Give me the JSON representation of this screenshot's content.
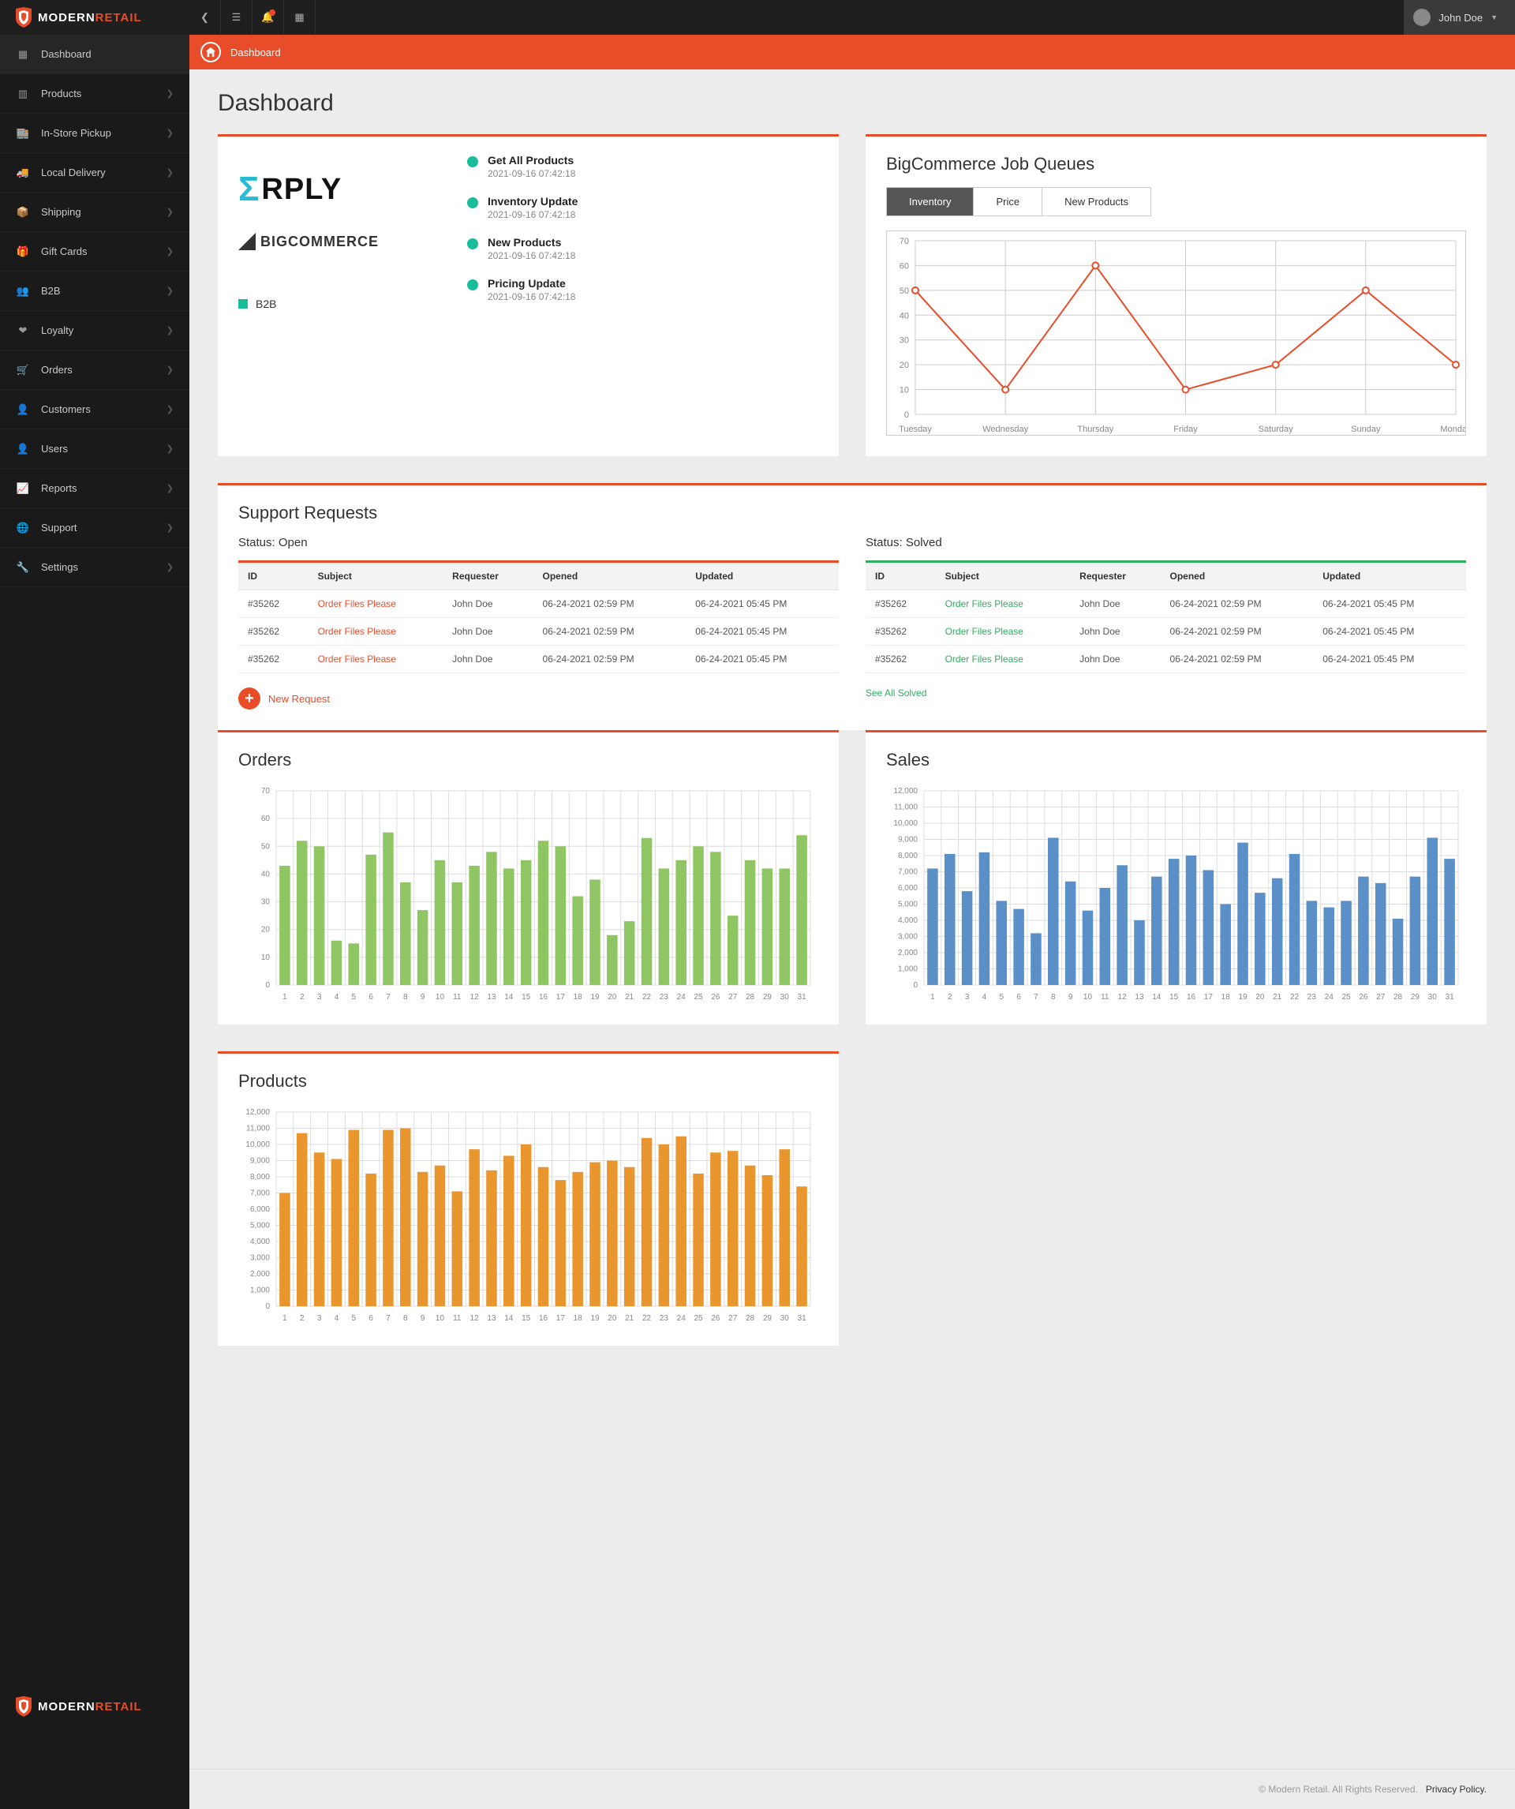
{
  "brand": {
    "name_a": "MODERN",
    "name_b": "RETAIL"
  },
  "user": {
    "name": "John Doe"
  },
  "breadcrumb": {
    "title": "Dashboard"
  },
  "page": {
    "title": "Dashboard"
  },
  "sidebar": {
    "items": [
      {
        "label": "Dashboard",
        "expandable": false,
        "active": true,
        "icon": "dashboard"
      },
      {
        "label": "Products",
        "expandable": true,
        "icon": "barcode"
      },
      {
        "label": "In-Store Pickup",
        "expandable": true,
        "icon": "store"
      },
      {
        "label": "Local Delivery",
        "expandable": true,
        "icon": "truck"
      },
      {
        "label": "Shipping",
        "expandable": true,
        "icon": "box"
      },
      {
        "label": "Gift Cards",
        "expandable": true,
        "icon": "gift"
      },
      {
        "label": "B2B",
        "expandable": true,
        "icon": "group"
      },
      {
        "label": "Loyalty",
        "expandable": true,
        "icon": "loyalty"
      },
      {
        "label": "Orders",
        "expandable": true,
        "icon": "cart"
      },
      {
        "label": "Customers",
        "expandable": true,
        "icon": "users"
      },
      {
        "label": "Users",
        "expandable": true,
        "icon": "user"
      },
      {
        "label": "Reports",
        "expandable": true,
        "icon": "chart"
      },
      {
        "label": "Support",
        "expandable": true,
        "icon": "support"
      },
      {
        "label": "Settings",
        "expandable": true,
        "icon": "wrench"
      }
    ]
  },
  "sync": {
    "logos": {
      "erply": "ΣRPLY",
      "bigcommerce": "BIGCOMMERCE"
    },
    "events": [
      {
        "title": "Get All Products",
        "date": "2021-09-16 07:42:18"
      },
      {
        "title": "Inventory Update",
        "date": "2021-09-16 07:42:18"
      },
      {
        "title": "New Products",
        "date": "2021-09-16 07:42:18"
      },
      {
        "title": "Pricing Update",
        "date": "2021-09-16 07:42:18"
      }
    ],
    "b2b_label": "B2B",
    "dot_color": "#1abc9c"
  },
  "queues": {
    "title": "BigCommerce Job Queues",
    "tabs": [
      "Inventory",
      "Price",
      "New Products"
    ],
    "active_tab": 0,
    "chart": {
      "type": "line",
      "categories": [
        "Tuesday",
        "Wednesday",
        "Thursday",
        "Friday",
        "Saturday",
        "Sunday",
        "Monday"
      ],
      "values": [
        50,
        10,
        60,
        10,
        20,
        50,
        20
      ],
      "ylim": [
        0,
        70
      ],
      "ytick_step": 10,
      "line_color": "#e84c29",
      "line_width": 2,
      "marker_color": "#e84c29",
      "marker_radius": 4,
      "grid_color": "#cccccc",
      "background_color": "#ffffff",
      "axis_font_size": 11,
      "axis_font_color": "#888888"
    }
  },
  "support": {
    "title": "Support Requests",
    "open": {
      "status_label": "Status: Open",
      "columns": [
        "ID",
        "Subject",
        "Requester",
        "Opened",
        "Updated"
      ],
      "rows": [
        [
          "#35262",
          "Order Files Please",
          "John Doe",
          "06-24-2021  02:59 PM",
          "06-24-2021  05:45 PM"
        ],
        [
          "#35262",
          "Order Files Please",
          "John Doe",
          "06-24-2021  02:59 PM",
          "06-24-2021  05:45 PM"
        ],
        [
          "#35262",
          "Order Files Please",
          "John Doe",
          "06-24-2021  02:59 PM",
          "06-24-2021  05:45 PM"
        ]
      ],
      "accent": "#e84c29",
      "new_request_label": "New Request"
    },
    "solved": {
      "status_label": "Status: Solved",
      "columns": [
        "ID",
        "Subject",
        "Requester",
        "Opened",
        "Updated"
      ],
      "rows": [
        [
          "#35262",
          "Order Files Please",
          "John Doe",
          "06-24-2021  02:59 PM",
          "06-24-2021  05:45 PM"
        ],
        [
          "#35262",
          "Order Files Please",
          "John Doe",
          "06-24-2021  02:59 PM",
          "06-24-2021  05:45 PM"
        ],
        [
          "#35262",
          "Order Files Please",
          "John Doe",
          "06-24-2021  02:59 PM",
          "06-24-2021  05:45 PM"
        ]
      ],
      "accent": "#2fae5f",
      "see_all_label": "See All Solved"
    }
  },
  "orders_chart": {
    "title": "Orders",
    "type": "bar",
    "categories": [
      1,
      2,
      3,
      4,
      5,
      6,
      7,
      8,
      9,
      10,
      11,
      12,
      13,
      14,
      15,
      16,
      17,
      18,
      19,
      20,
      21,
      22,
      23,
      24,
      25,
      26,
      27,
      28,
      29,
      30,
      31
    ],
    "values": [
      43,
      52,
      50,
      16,
      15,
      47,
      55,
      37,
      27,
      45,
      37,
      43,
      48,
      42,
      45,
      52,
      50,
      32,
      38,
      18,
      23,
      53,
      42,
      45,
      50,
      48,
      25,
      45,
      42,
      42,
      54
    ],
    "ylim": [
      0,
      70
    ],
    "ytick_step": 10,
    "bar_color": "#8fc663",
    "grid_color": "#dddddd",
    "background_color": "#ffffff",
    "axis_font_size": 10,
    "axis_font_color": "#888888",
    "bar_width": 0.62
  },
  "sales_chart": {
    "title": "Sales",
    "type": "bar",
    "categories": [
      1,
      2,
      3,
      4,
      5,
      6,
      7,
      8,
      9,
      10,
      11,
      12,
      13,
      14,
      15,
      16,
      17,
      18,
      19,
      20,
      21,
      22,
      23,
      24,
      25,
      26,
      27,
      28,
      29,
      30,
      31
    ],
    "values": [
      7200,
      8100,
      5800,
      8200,
      5200,
      4700,
      3200,
      9100,
      6400,
      4600,
      6000,
      7400,
      4000,
      6700,
      7800,
      8000,
      7100,
      5000,
      8800,
      5700,
      6600,
      8100,
      5200,
      4800,
      5200,
      6700,
      6300,
      4100,
      6700,
      9100,
      7800
    ],
    "ylim": [
      0,
      12000
    ],
    "ytick_step": 1000,
    "bar_color": "#5b8fc7",
    "grid_color": "#dddddd",
    "background_color": "#ffffff",
    "axis_font_size": 10,
    "axis_font_color": "#888888",
    "bar_width": 0.62
  },
  "products_chart": {
    "title": "Products",
    "type": "bar",
    "categories": [
      1,
      2,
      3,
      4,
      5,
      6,
      7,
      8,
      9,
      10,
      11,
      12,
      13,
      14,
      15,
      16,
      17,
      18,
      19,
      20,
      21,
      22,
      23,
      24,
      25,
      26,
      27,
      28,
      29,
      30,
      31
    ],
    "values": [
      7000,
      10700,
      9500,
      9100,
      10900,
      8200,
      10900,
      11000,
      8300,
      8700,
      7100,
      9700,
      8400,
      9300,
      10000,
      8600,
      7800,
      8300,
      8900,
      9000,
      8600,
      10400,
      10000,
      10500,
      8200,
      9500,
      9600,
      8700,
      8100,
      9700,
      7400
    ],
    "ylim": [
      0,
      12000
    ],
    "ytick_step": 1000,
    "bar_color": "#e9962e",
    "grid_color": "#dddddd",
    "background_color": "#ffffff",
    "axis_font_size": 10,
    "axis_font_color": "#888888",
    "bar_width": 0.62
  },
  "footer": {
    "copyright": "© Modern Retail. All Rights Reserved.",
    "link_label": "Privacy Policy."
  },
  "colors": {
    "accent": "#e84c29"
  }
}
